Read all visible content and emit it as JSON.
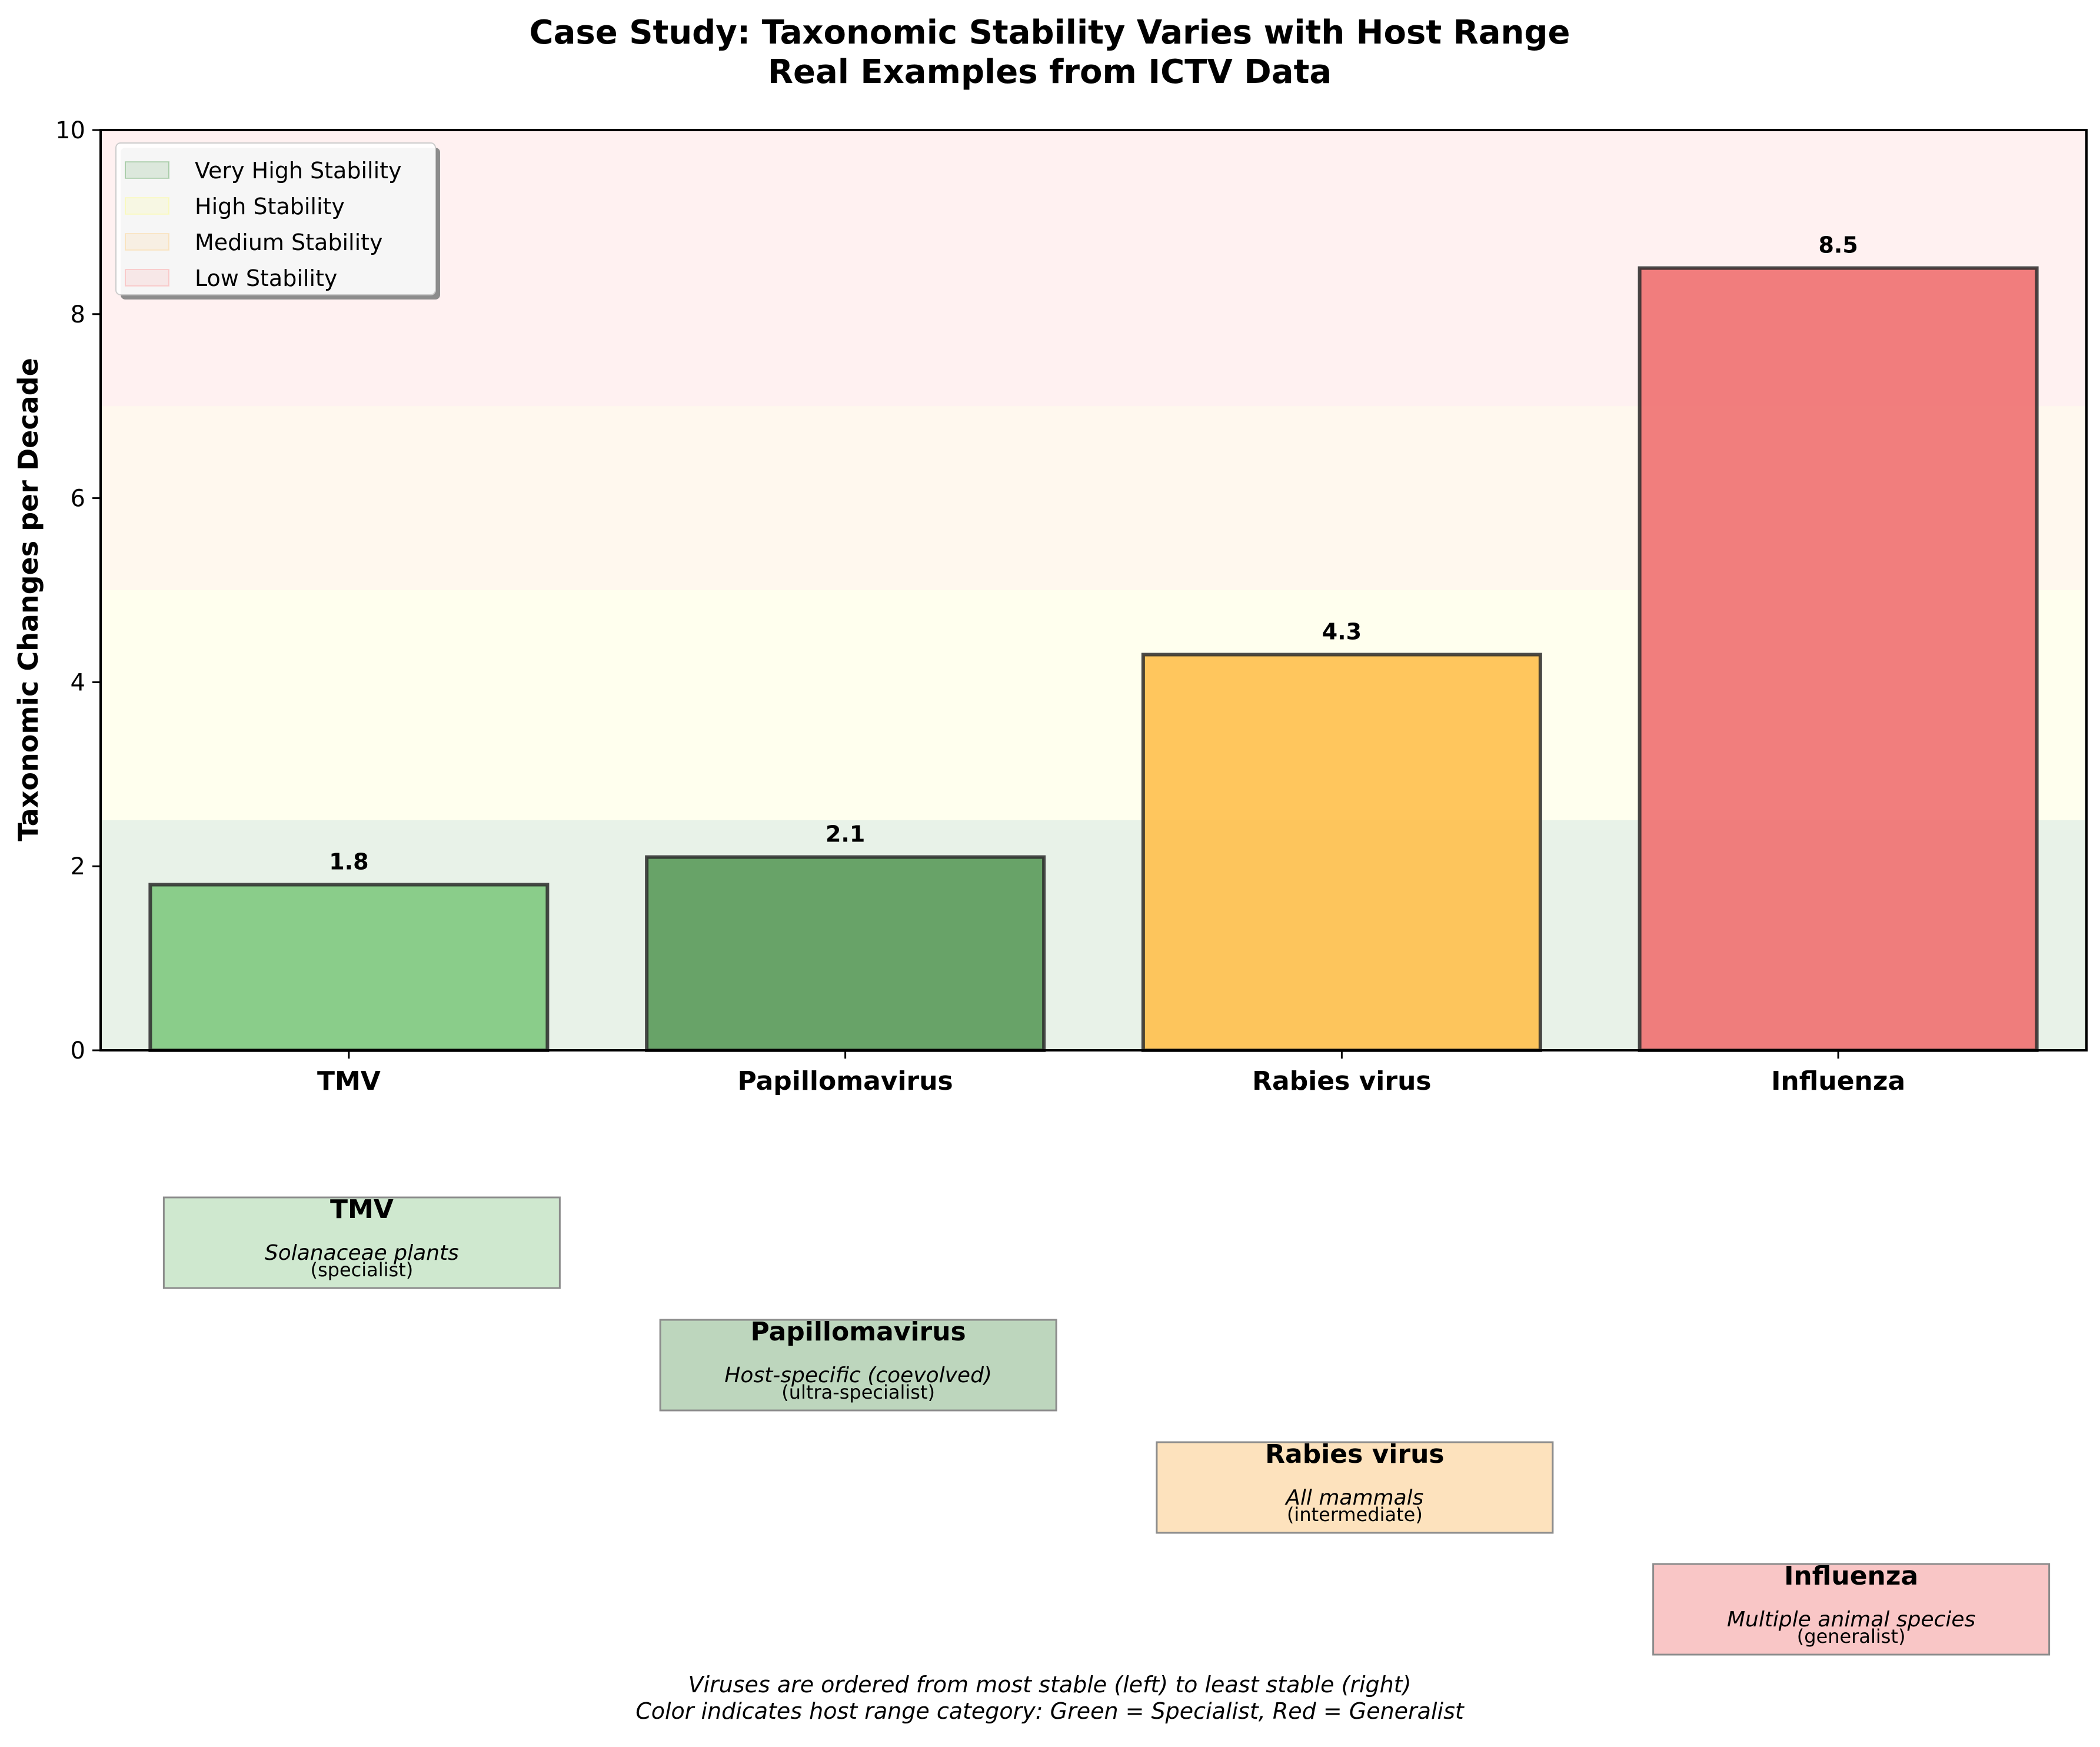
{
  "chart_data": {
    "type": "bar",
    "title": "Case Study: Taxonomic Stability Varies with Host Range",
    "subtitle": "Real Examples from ICTV Data",
    "ylabel": "Taxonomic Changes per Decade",
    "xlabel": "",
    "ylim": [
      0,
      10
    ],
    "yticks": [
      0,
      2,
      4,
      6,
      8,
      10
    ],
    "categories": [
      "TMV",
      "Papillomavirus",
      "Rabies virus",
      "Influenza"
    ],
    "values": [
      1.8,
      2.1,
      4.3,
      8.5
    ],
    "value_labels": [
      "1.8",
      "2.1",
      "4.3",
      "8.5"
    ],
    "bar_colors": [
      "#7fc97f",
      "#5a9a5a",
      "#ffc04d",
      "#f07070"
    ],
    "stability_bands": [
      {
        "name": "Very High Stability",
        "from": 0,
        "to": 2.5,
        "color": "#2e8b2e"
      },
      {
        "name": "High Stability",
        "from": 2.5,
        "to": 5,
        "color": "#ffff66"
      },
      {
        "name": "Medium Stability",
        "from": 5,
        "to": 7,
        "color": "#ffc266"
      },
      {
        "name": "Low Stability",
        "from": 7,
        "to": 10,
        "color": "#ff8080"
      }
    ],
    "legend_position": "top-left",
    "grid": false,
    "host_boxes": [
      {
        "name": "TMV",
        "host": "Solanaceae plants",
        "category": "(specialist)",
        "color": "#cfe8cf"
      },
      {
        "name": "Papillomavirus",
        "host": "Host-specific (coevolved)",
        "category": "(ultra-specialist)",
        "color": "#bdd6bd"
      },
      {
        "name": "Rabies virus",
        "host": "All mammals",
        "category": "(intermediate)",
        "color": "#fde2bd"
      },
      {
        "name": "Influenza",
        "host": "Multiple animal species",
        "category": "(generalist)",
        "color": "#f9c6c6"
      }
    ],
    "footnote": [
      "Viruses are ordered from most stable (left) to least stable (right)",
      "Color indicates host range category: Green = Specialist, Red = Generalist"
    ]
  }
}
